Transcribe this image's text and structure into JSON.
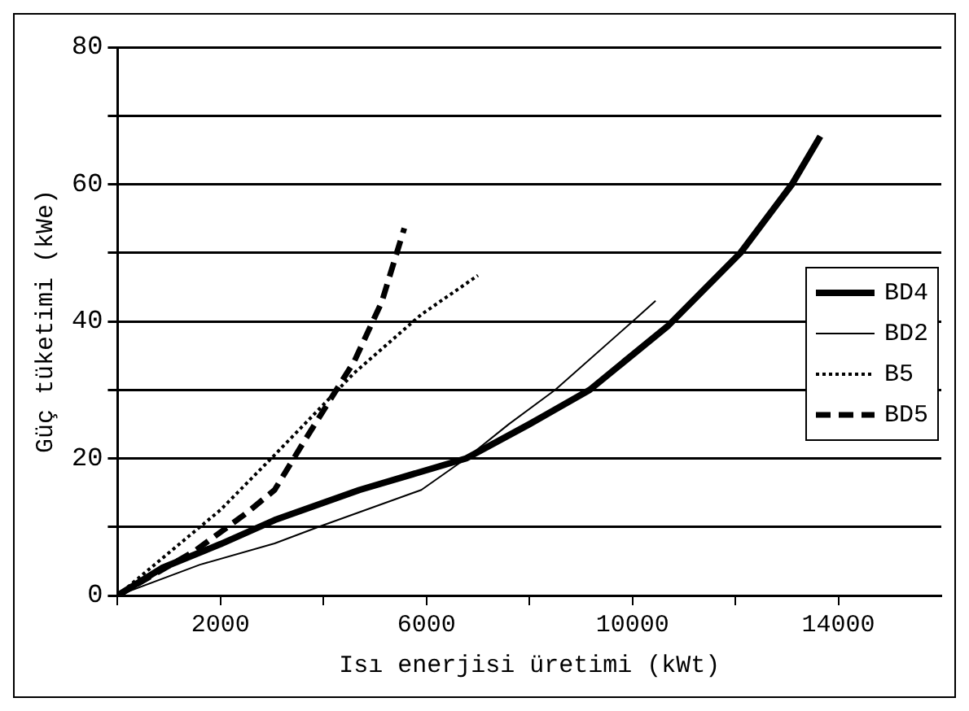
{
  "chart_data": {
    "type": "line",
    "xlabel": "Isı enerjisi üretimi (kWt)",
    "ylabel": "Güç tüketimi (kWe)",
    "xlim": [
      0,
      16000
    ],
    "ylim": [
      0,
      80
    ],
    "xticks": [
      {
        "value": 0,
        "label": null
      },
      2000,
      {
        "value": 4000,
        "label": null
      },
      6000,
      {
        "value": 8000,
        "label": null
      },
      10000,
      {
        "value": 12000,
        "label": null
      },
      14000
    ],
    "yticks": [
      0,
      {
        "value": 10,
        "label": null
      },
      20,
      {
        "value": 30,
        "label": null
      },
      40,
      {
        "value": 50,
        "label": null
      },
      60,
      {
        "value": 70,
        "label": null
      },
      80
    ],
    "grid": "y",
    "legend": "right",
    "marker": "none",
    "series": [
      {
        "name": "BD4",
        "color": "#000000",
        "line_style": "solid",
        "x": [
          0,
          860,
          2000,
          3050,
          4700,
          6770,
          8000,
          9170,
          10700,
          12100,
          13100,
          13650
        ],
        "values": [
          0,
          4,
          7.5,
          11,
          15.4,
          20,
          25,
          30,
          39.4,
          50,
          60,
          67
        ]
      },
      {
        "name": "BD2",
        "color": "#000000",
        "line_style": "solid",
        "x": [
          0,
          1600,
          3050,
          3900,
          5900,
          6770,
          7600,
          8500,
          10050,
          10450
        ],
        "values": [
          0,
          4.5,
          7.6,
          10,
          15.4,
          20,
          25,
          30,
          40.3,
          43
        ]
      },
      {
        "name": "B5",
        "color": "#000000",
        "line_style": "dotted",
        "x": [
          0,
          2000,
          3050,
          4600,
          5900,
          7000
        ],
        "values": [
          0,
          12.5,
          20.5,
          32.5,
          41,
          46.7
        ]
      },
      {
        "name": "BD5",
        "color": "#000000",
        "line_style": "dashed",
        "x": [
          0,
          1500,
          2500,
          3050,
          3600,
          4600,
          5130,
          5570
        ],
        "values": [
          0,
          6.5,
          12,
          15.4,
          22.2,
          34.2,
          42.8,
          53.6
        ]
      }
    ]
  }
}
